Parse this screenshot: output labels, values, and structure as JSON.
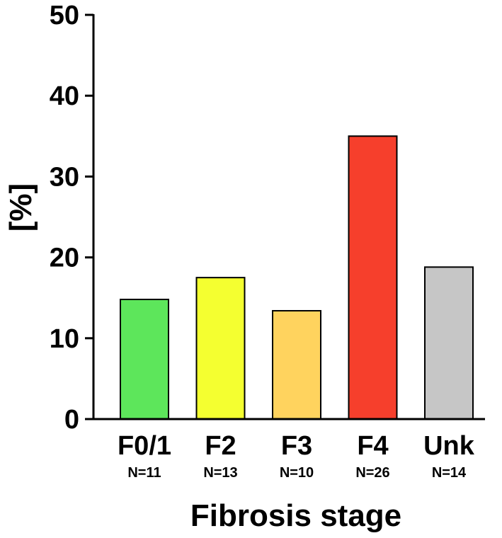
{
  "chart_data": {
    "type": "bar",
    "categories": [
      "F0/1",
      "F2",
      "F3",
      "F4",
      "Unk"
    ],
    "n_labels": [
      "N=11",
      "N=13",
      "N=10",
      "N=26",
      "N=14"
    ],
    "values": [
      14.8,
      17.5,
      13.4,
      35.0,
      18.8
    ],
    "colors": [
      "#5de65b",
      "#f4ff30",
      "#ffd35e",
      "#f63f2c",
      "#c6c6c6"
    ],
    "xlabel": "Fibrosis stage",
    "ylabel": "[%]",
    "ylim": [
      0,
      50
    ],
    "yticks": [
      0,
      10,
      20,
      30,
      40,
      50
    ],
    "ytick_labels": [
      "0",
      "10",
      "20",
      "30",
      "40",
      "50"
    ],
    "grid": false,
    "legend": "none"
  }
}
